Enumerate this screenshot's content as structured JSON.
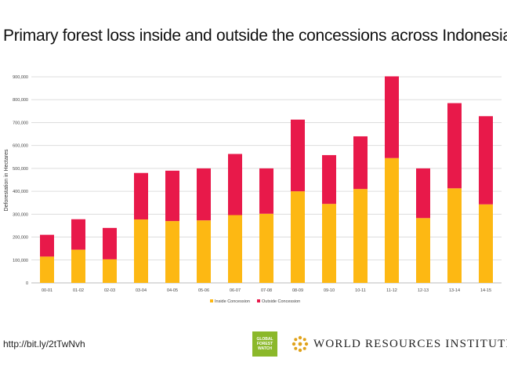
{
  "chart_data": {
    "type": "bar",
    "stacked": true,
    "title": "Primary forest loss inside and outside the concessions across Indonesia",
    "ylabel": "Deforestation in Hectares",
    "xlabel": "",
    "ylim": [
      0,
      900000
    ],
    "yticks": [
      0,
      100000,
      200000,
      300000,
      400000,
      500000,
      600000,
      700000,
      800000,
      900000
    ],
    "ytick_labels": [
      "0",
      "100,000",
      "200,000",
      "300,000",
      "400,000",
      "500,000",
      "600,000",
      "700,000",
      "800,000",
      "900,000"
    ],
    "grid": true,
    "legend": "bottom",
    "categories": [
      "00-01",
      "01-02",
      "02-03",
      "03-04",
      "04-05",
      "05-06",
      "06-07",
      "07-08",
      "08-09",
      "09-10",
      "10-11",
      "11-12",
      "12-13",
      "13-14",
      "14-15"
    ],
    "series": [
      {
        "name": "Inside Concession",
        "color": "#fdb813",
        "values": [
          115000,
          145000,
          103000,
          277000,
          270000,
          273000,
          296000,
          302000,
          400000,
          345000,
          410000,
          545000,
          283000,
          413000,
          343000
        ]
      },
      {
        "name": "Outside Concession",
        "color": "#e8194a",
        "values": [
          95000,
          133000,
          137000,
          203000,
          220000,
          227000,
          267000,
          198000,
          313000,
          213000,
          230000,
          357000,
          217000,
          372000,
          385000
        ]
      }
    ]
  },
  "footer": {
    "url": "http://bit.ly/2tTwNvh",
    "gfw_logo": [
      "GLOBAL",
      "FOREST",
      "WATCH"
    ],
    "wri_name": "WORLD RESOURCES INSTITUTE"
  },
  "icons": {
    "gfw": "global-forest-watch-logo",
    "wri": "wri-starburst-logo"
  }
}
